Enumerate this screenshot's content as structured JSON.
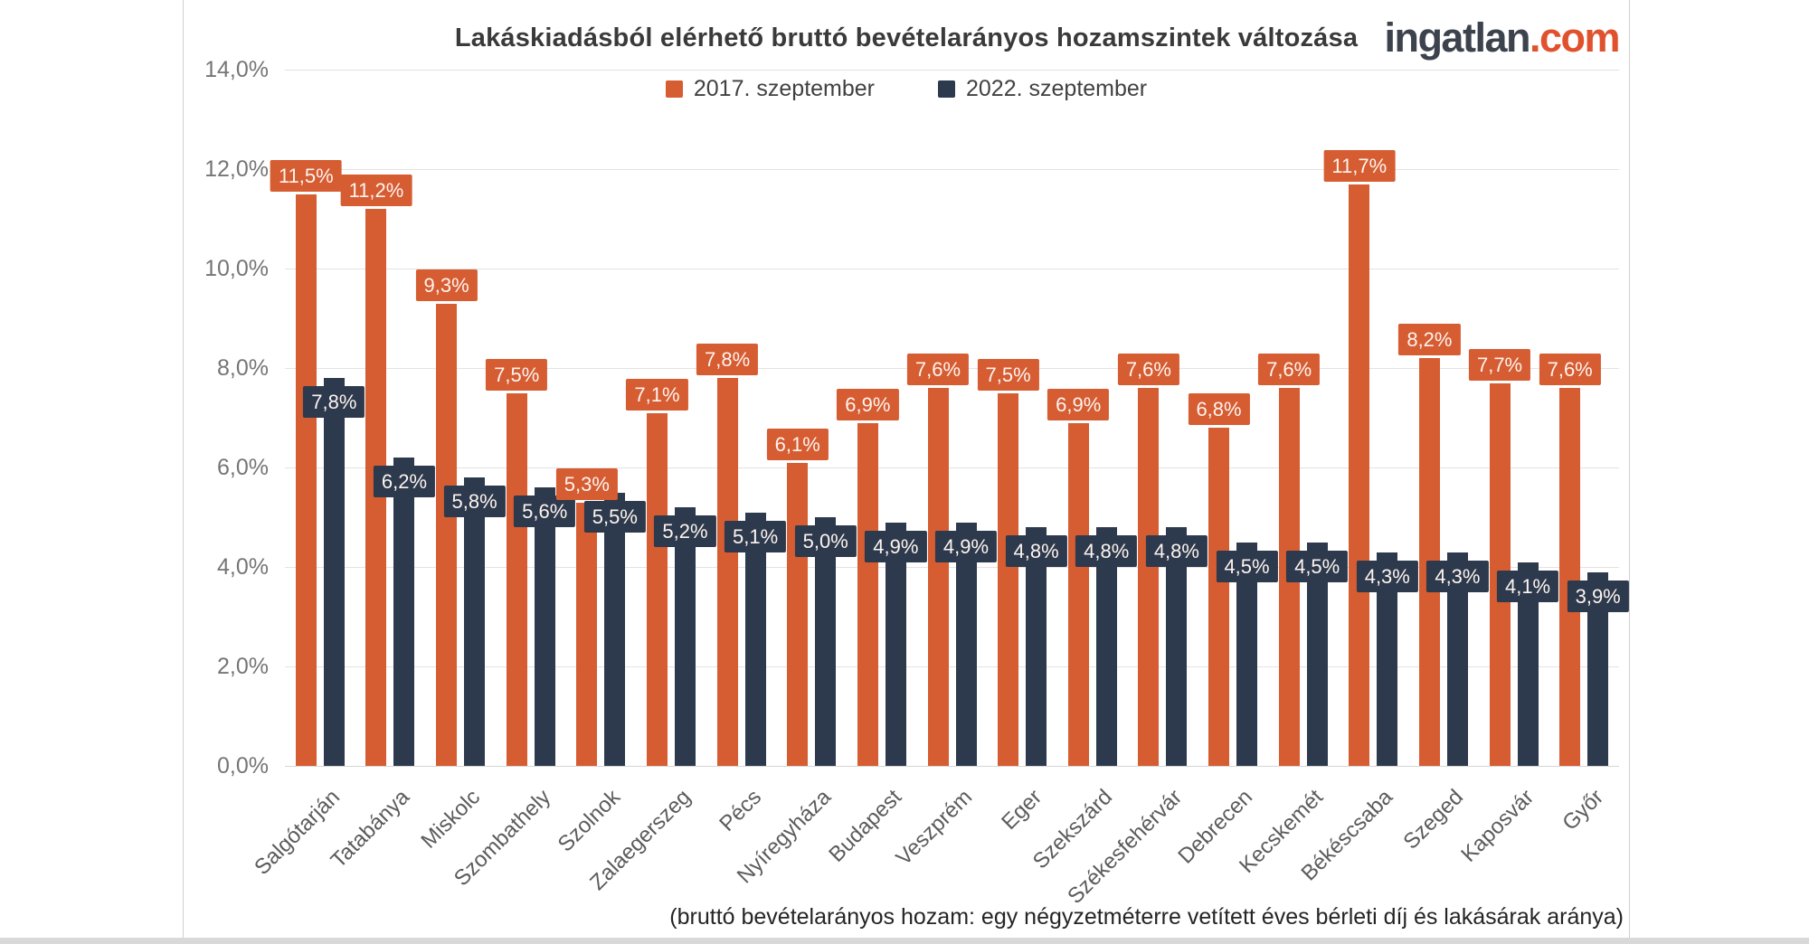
{
  "header": {
    "title": "Lakáskiadásból elérhető bruttó bevételarányos hozamszintek változása",
    "logo": {
      "part1": "ingatlan",
      "part2": ".com",
      "part1_color": "#3d434d",
      "part2_color": "#e0522d"
    }
  },
  "legend": [
    {
      "label": "2017. szeptember",
      "color": "#d65c32"
    },
    {
      "label": "2022. szeptember",
      "color": "#2d394c"
    }
  ],
  "footer_note": "(bruttó bevételarányos hozam: egy négyzetméterre vetített éves bérleti díj és lakásárak aránya)",
  "chart_data": {
    "type": "bar",
    "title": "Lakáskiadásból elérhető bruttó bevételarányos hozamszintek változása",
    "categories": [
      "Salgótarján",
      "Tatabánya",
      "Miskolc",
      "Szombathely",
      "Szolnok",
      "Zalaegerszeg",
      "Pécs",
      "Nyíregyháza",
      "Budapest",
      "Veszprém",
      "Eger",
      "Szekszárd",
      "Székesfehérvár",
      "Debrecen",
      "Kecskemét",
      "Békéscsaba",
      "Szeged",
      "Kaposvár",
      "Győr"
    ],
    "series": [
      {
        "name": "2017. szeptember",
        "color": "#d65c32",
        "values": [
          11.5,
          11.2,
          9.3,
          7.5,
          5.3,
          7.1,
          7.8,
          6.1,
          6.9,
          7.6,
          7.5,
          6.9,
          7.6,
          6.8,
          7.6,
          11.7,
          8.2,
          7.7,
          7.6
        ],
        "value_labels": [
          "11,5%",
          "11,2%",
          "9,3%",
          "7,5%",
          "5,3%",
          "7,1%",
          "7,8%",
          "6,1%",
          "6,9%",
          "7,6%",
          "7,5%",
          "6,9%",
          "7,6%",
          "6,8%",
          "7,6%",
          "11,7%",
          "8,2%",
          "7,7%",
          "7,6%"
        ]
      },
      {
        "name": "2022. szeptember",
        "color": "#2d394c",
        "values": [
          7.8,
          6.2,
          5.8,
          5.6,
          5.5,
          5.2,
          5.1,
          5.0,
          4.9,
          4.9,
          4.8,
          4.8,
          4.8,
          4.5,
          4.5,
          4.3,
          4.3,
          4.1,
          3.9
        ],
        "value_labels": [
          "7,8%",
          "6,2%",
          "5,8%",
          "5,6%",
          "5,5%",
          "5,2%",
          "5,1%",
          "5,0%",
          "4,9%",
          "4,9%",
          "4,8%",
          "4,8%",
          "4,8%",
          "4,5%",
          "4,5%",
          "4,3%",
          "4,3%",
          "4,1%",
          "3,9%"
        ]
      }
    ],
    "y_axis": {
      "min": 0,
      "max": 14,
      "step": 2,
      "tick_labels": [
        "0,0%",
        "2,0%",
        "4,0%",
        "6,0%",
        "8,0%",
        "10,0%",
        "12,0%",
        "14,0%"
      ]
    },
    "xlabel": "",
    "ylabel": "",
    "grid": true,
    "legend_position": "top",
    "value_labels_shown": true
  }
}
